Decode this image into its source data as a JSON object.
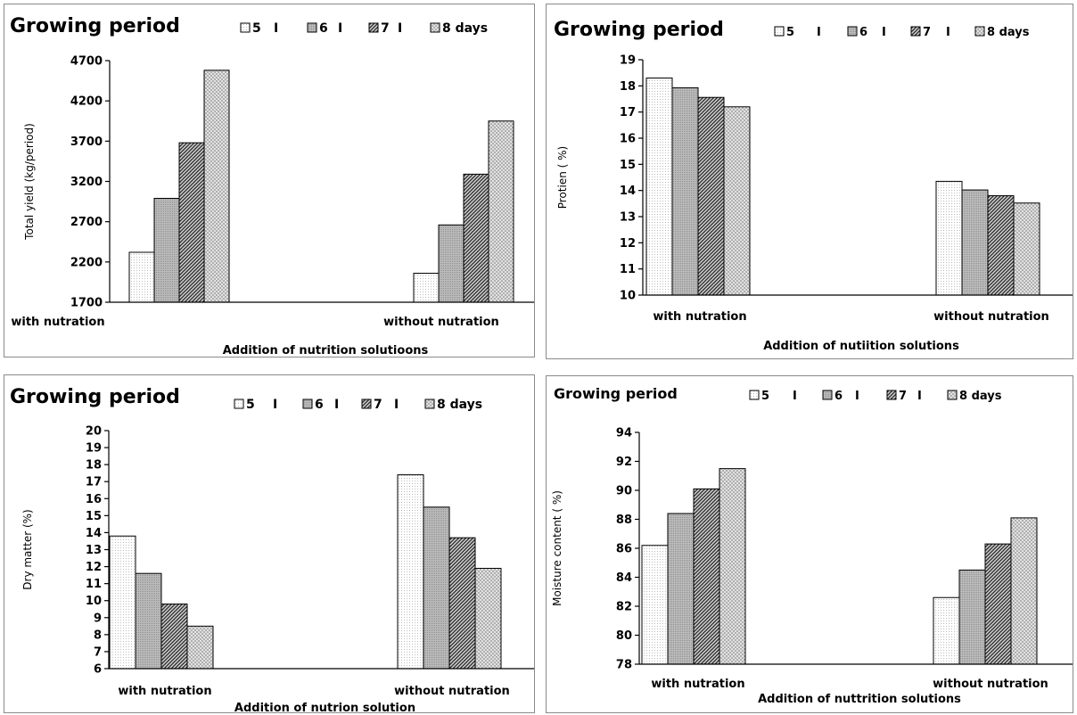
{
  "chart_data": [
    {
      "type": "bar",
      "title": "Growing period",
      "legend": [
        "5",
        "I",
        "6",
        "I",
        "7",
        "I",
        "8 days"
      ],
      "series_names": [
        "5",
        "6",
        "7",
        "8 days"
      ],
      "categories": [
        "with nutration",
        "without  nutration"
      ],
      "series": [
        {
          "values": [
            2320,
            2060
          ]
        },
        {
          "values": [
            2990,
            2660
          ]
        },
        {
          "values": [
            3680,
            3290
          ]
        },
        {
          "values": [
            4580,
            3950
          ]
        }
      ],
      "xlabel": "Addition of nutrition solutioons",
      "ylabel": "Total yield (kg/period)",
      "ylim": [
        1700,
        4700
      ],
      "yticks": [
        "1700",
        "2200",
        "2700",
        "3200",
        "3700",
        "4200",
        "4700"
      ],
      "legend_placement": "top-right",
      "grid": false
    },
    {
      "type": "bar",
      "title": "Growing period",
      "legend": [
        "5",
        "I",
        "6",
        "I",
        "7",
        "I",
        "8 days"
      ],
      "series_names": [
        "5",
        "6",
        "7",
        "8 days"
      ],
      "categories": [
        "with nutration",
        "without  nutration"
      ],
      "series": [
        {
          "values": [
            18.3,
            14.35
          ]
        },
        {
          "values": [
            17.93,
            14.02
          ]
        },
        {
          "values": [
            17.56,
            13.8
          ]
        },
        {
          "values": [
            17.2,
            13.52
          ]
        }
      ],
      "xlabel": "Addition of nutiition solutions",
      "ylabel": "Protien ( %)",
      "ylim": [
        10,
        19
      ],
      "yticks": [
        "10",
        "11",
        "12",
        "13",
        "14",
        "15",
        "16",
        "17",
        "18",
        "19"
      ],
      "legend_placement": "top-right",
      "grid": false
    },
    {
      "type": "bar",
      "title": "Growing period",
      "legend": [
        "5",
        "I",
        "6",
        "I",
        "7",
        "I",
        "8 days"
      ],
      "series_names": [
        "5",
        "6",
        "7",
        "8 days"
      ],
      "categories": [
        "with nutration",
        "without nutration"
      ],
      "series": [
        {
          "values": [
            13.8,
            17.4
          ]
        },
        {
          "values": [
            11.6,
            15.5
          ]
        },
        {
          "values": [
            9.8,
            13.7
          ]
        },
        {
          "values": [
            8.5,
            11.9
          ]
        }
      ],
      "xlabel": "Addition of nutrion solution",
      "ylabel": "Dry matter (%)",
      "ylim": [
        6,
        20
      ],
      "yticks": [
        "6",
        "7",
        "8",
        "9",
        "10",
        "11",
        "12",
        "13",
        "14",
        "15",
        "16",
        "17",
        "18",
        "19",
        "20"
      ],
      "legend_placement": "top-right",
      "grid": false
    },
    {
      "type": "bar",
      "title": "Growing period",
      "legend": [
        "5",
        "I",
        "6",
        "I",
        "7",
        "I",
        "8 days"
      ],
      "series_names": [
        "5",
        "6",
        "7",
        "8 days"
      ],
      "categories": [
        "with nutration",
        "without nutration"
      ],
      "series": [
        {
          "values": [
            86.2,
            82.6
          ]
        },
        {
          "values": [
            88.4,
            84.5
          ]
        },
        {
          "values": [
            90.1,
            86.3
          ]
        },
        {
          "values": [
            91.5,
            88.1
          ]
        }
      ],
      "xlabel": "Addition of nuttrition  solutions",
      "ylabel": "Moisture content ( %)",
      "ylim": [
        78,
        94
      ],
      "yticks": [
        "78",
        "80",
        "82",
        "84",
        "86",
        "88",
        "90",
        "92",
        "94"
      ],
      "legend_placement": "top-right",
      "grid": false
    }
  ]
}
